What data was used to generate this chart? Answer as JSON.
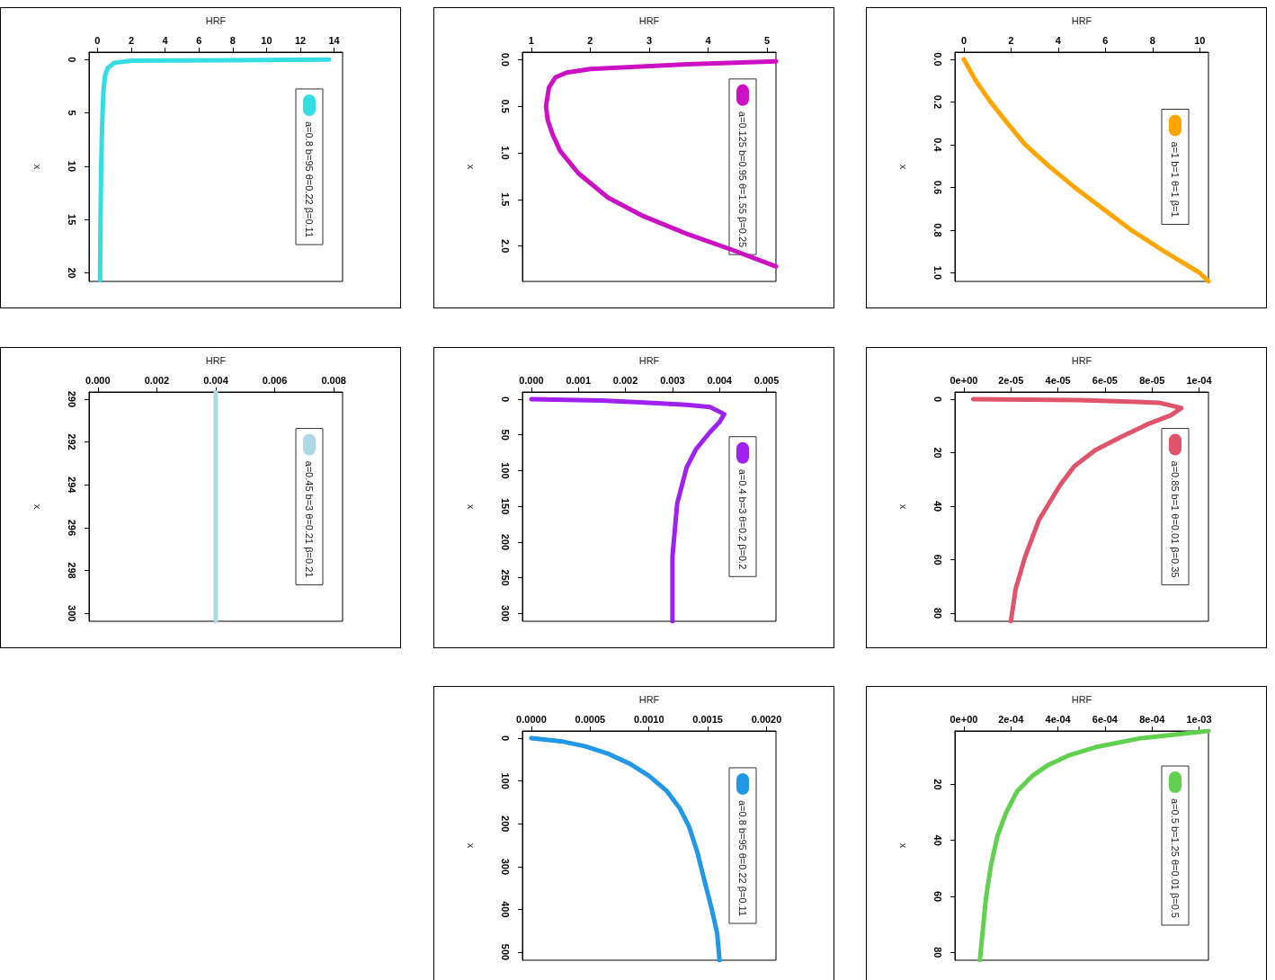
{
  "chart_data": [
    {
      "type": "line",
      "xlabel": "HRF",
      "ylabel": "x",
      "xlim": [
        -0.5,
        14.5
      ],
      "ylim": [
        20.8,
        -0.7
      ],
      "xticks": [
        0,
        2,
        4,
        6,
        8,
        10,
        12,
        14
      ],
      "yticks": [
        0,
        5,
        10,
        15,
        20
      ],
      "grid": false,
      "legend": "right",
      "marker": "none",
      "line_style": "solid",
      "series": [
        {
          "name": "a=0.8 b=95 θ=0.22 β=0.11",
          "color": "#33dde3",
          "x": [
            13.7,
            2,
            1,
            0.6,
            0.45,
            0.35,
            0.28,
            0.22,
            0.18,
            0.15
          ],
          "values": [
            0,
            0.1,
            0.3,
            0.8,
            1.5,
            3,
            6,
            10,
            15,
            20.7
          ]
        }
      ]
    },
    {
      "type": "line",
      "xlabel": "HRF",
      "ylabel": "x",
      "xlim": [
        0.85,
        5.15
      ],
      "ylim": [
        2.38,
        -0.08
      ],
      "xticks": [
        1,
        2,
        3,
        4,
        5
      ],
      "yticks": [
        {
          "value": 0,
          "label": "0.0"
        },
        {
          "value": 0.5,
          "label": "0.5"
        },
        {
          "value": 1,
          "label": "1.0"
        },
        {
          "value": 1.5,
          "label": "1.5"
        },
        {
          "value": 2,
          "label": "2.0"
        }
      ],
      "grid": false,
      "legend": "right",
      "marker": "none",
      "line_style": "solid",
      "series": [
        {
          "name": "a=0.125 b=0.95 θ=1.55 β=0.25",
          "color": "#cc11c4",
          "x": [
            5.15,
            3.64,
            2.0,
            1.6,
            1.41,
            1.3,
            1.25,
            1.28,
            1.36,
            1.49,
            1.8,
            2.3,
            2.9,
            3.64,
            4.4,
            5.15
          ],
          "values": [
            0.02,
            0.05,
            0.1,
            0.14,
            0.19,
            0.3,
            0.5,
            0.65,
            0.8,
            0.98,
            1.22,
            1.48,
            1.68,
            1.87,
            2.04,
            2.22
          ]
        }
      ]
    },
    {
      "type": "line",
      "xlabel": "HRF",
      "ylabel": "x",
      "xlim": [
        -0.38,
        10.37
      ],
      "ylim": [
        1.04,
        -0.033
      ],
      "xticks": [
        0,
        2,
        4,
        6,
        8,
        10
      ],
      "yticks": [
        {
          "value": 0,
          "label": "0.0"
        },
        {
          "value": 0.2,
          "label": "0.2"
        },
        {
          "value": 0.4,
          "label": "0.4"
        },
        {
          "value": 0.6,
          "label": "0.6"
        },
        {
          "value": 0.8,
          "label": "0.8"
        },
        {
          "value": 1,
          "label": "1.0"
        }
      ],
      "grid": false,
      "legend": "right",
      "marker": "none",
      "line_style": "solid",
      "series": [
        {
          "name": "a=1 b=1 θ=1 β=1",
          "color": "#ffa500",
          "x": [
            0,
            0.5,
            1.13,
            1.85,
            2.6,
            3.6,
            4.7,
            5.9,
            7.1,
            8.5,
            10,
            10.37
          ],
          "values": [
            0,
            0.1,
            0.2,
            0.3,
            0.4,
            0.5,
            0.6,
            0.7,
            0.8,
            0.9,
            1.0,
            1.04
          ]
        }
      ]
    },
    {
      "type": "line",
      "xlabel": "HRF",
      "ylabel": "x",
      "xlim": [
        -0.0003,
        0.0083
      ],
      "ylim": [
        300.37,
        289.67
      ],
      "xticks": [
        {
          "value": 0,
          "label": "0.000"
        },
        {
          "value": 0.002,
          "label": "0.002"
        },
        {
          "value": 0.004,
          "label": "0.004"
        },
        {
          "value": 0.006,
          "label": "0.006"
        },
        {
          "value": 0.008,
          "label": "0.008"
        }
      ],
      "yticks": [
        290,
        292,
        294,
        296,
        298,
        300
      ],
      "grid": false,
      "legend": "right",
      "marker": "none",
      "line_style": "solid",
      "series": [
        {
          "name": "a=0.45 b=3 θ=0.21 β=0.21",
          "color": "#add8e6",
          "x": [
            0.004,
            0.004,
            0.004,
            0.004
          ],
          "values": [
            289.67,
            294,
            298,
            300.37
          ]
        }
      ]
    },
    {
      "type": "line",
      "xlabel": "HRF",
      "ylabel": "x",
      "xlim": [
        -0.00019,
        0.0052
      ],
      "ylim": [
        311,
        -10
      ],
      "xticks": [
        {
          "value": 0,
          "label": "0.000"
        },
        {
          "value": 0.001,
          "label": "0.001"
        },
        {
          "value": 0.002,
          "label": "0.002"
        },
        {
          "value": 0.003,
          "label": "0.003"
        },
        {
          "value": 0.004,
          "label": "0.004"
        },
        {
          "value": 0.005,
          "label": "0.005"
        }
      ],
      "yticks": [
        0,
        50,
        100,
        150,
        200,
        250,
        300
      ],
      "grid": false,
      "legend": "right",
      "marker": "none",
      "line_style": "solid",
      "series": [
        {
          "name": "a=0.4 b=3 θ=0.2 β=0.2",
          "color": "#a020f0",
          "x": [
            0,
            0.0015,
            0.0025,
            0.0033,
            0.0038,
            0.0041,
            0.004,
            0.0038,
            0.0035,
            0.0033,
            0.0031,
            0.003,
            0.003
          ],
          "values": [
            0,
            2,
            5,
            8,
            11,
            21,
            32,
            46,
            70,
            96,
            146,
            220,
            311
          ]
        }
      ]
    },
    {
      "type": "line",
      "xlabel": "HRF",
      "ylabel": "x",
      "xlim": [
        -3.8e-06,
        0.000104
      ],
      "ylim": [
        83,
        -2.7
      ],
      "xticks": [
        {
          "value": 0,
          "label": "0e+00"
        },
        {
          "value": 2e-05,
          "label": "2e-05"
        },
        {
          "value": 4e-05,
          "label": "4e-05"
        },
        {
          "value": 6e-05,
          "label": "6e-05"
        },
        {
          "value": 8e-05,
          "label": "8e-05"
        },
        {
          "value": 0.0001,
          "label": "1e-04"
        }
      ],
      "yticks": [
        0,
        20,
        40,
        60,
        80
      ],
      "grid": false,
      "legend": "right",
      "marker": "none",
      "line_style": "solid",
      "series": [
        {
          "name": "a=0.85 b=1 θ=0.01 β=0.35",
          "color": "#df536b",
          "x": [
            4e-06,
            4.9e-05,
            8.3e-05,
            9.25e-05,
            8.8e-05,
            7.9e-05,
            6.7e-05,
            5.6e-05,
            4.7e-05,
            4.1e-05,
            3.2e-05,
            2.6e-05,
            2.2e-05,
            2e-05
          ],
          "values": [
            0,
            0.3,
            1.3,
            3.3,
            6,
            9,
            14,
            19,
            25,
            32,
            45,
            59,
            71,
            83
          ]
        }
      ]
    },
    {
      "type": "line",
      "xlabel": "HRF",
      "ylabel": "x",
      "xlim": [
        -7.6e-05,
        0.00208
      ],
      "ylim": [
        519,
        -17
      ],
      "xticks": [
        {
          "value": 0,
          "label": "0.0000"
        },
        {
          "value": 0.0005,
          "label": "0.0005"
        },
        {
          "value": 0.001,
          "label": "0.0010"
        },
        {
          "value": 0.0015,
          "label": "0.0015"
        },
        {
          "value": 0.002,
          "label": "0.0020"
        }
      ],
      "yticks": [
        0,
        100,
        200,
        300,
        400,
        500
      ],
      "grid": false,
      "legend": "right",
      "marker": "none",
      "line_style": "solid",
      "series": [
        {
          "name": "a=0.8 b=95 θ=0.22 β=0.11",
          "color": "#2297e6",
          "x": [
            0,
            0.00025,
            0.00046,
            0.00066,
            0.00084,
            0.001,
            0.00115,
            0.00126,
            0.00134,
            0.00141,
            0.00147,
            0.00153,
            0.00158,
            0.0016
          ],
          "values": [
            0,
            7,
            19,
            37,
            60,
            88,
            123,
            163,
            206,
            265,
            331,
            395,
            456,
            519
          ]
        }
      ]
    },
    {
      "type": "line",
      "xlabel": "HRF",
      "ylabel": "x",
      "xlim": [
        -3.8e-05,
        0.00104
      ],
      "ylim": [
        82.8,
        0.9
      ],
      "xticks": [
        {
          "value": 0,
          "label": "0e+00"
        },
        {
          "value": 0.0002,
          "label": "2e-04"
        },
        {
          "value": 0.0004,
          "label": "4e-04"
        },
        {
          "value": 0.0006,
          "label": "6e-04"
        },
        {
          "value": 0.0008,
          "label": "8e-04"
        },
        {
          "value": 0.001,
          "label": "1e-03"
        }
      ],
      "yticks": [
        20,
        40,
        60,
        80
      ],
      "grid": false,
      "legend": "right",
      "marker": "none",
      "line_style": "solid",
      "series": [
        {
          "name": "a=0.5 b=1.25 θ=0.01 β=0.5",
          "color": "#61d04f",
          "x": [
            0.00104,
            0.00075,
            0.00056,
            0.00045,
            0.00036,
            0.00029,
            0.000226,
            0.00018,
            0.000143,
            0.000115,
            9.4e-05,
            6.8e-05
          ],
          "values": [
            0.9,
            3.5,
            6.7,
            9.5,
            13,
            17,
            22.5,
            30,
            38.4,
            49,
            60.6,
            82.8
          ]
        }
      ]
    }
  ]
}
